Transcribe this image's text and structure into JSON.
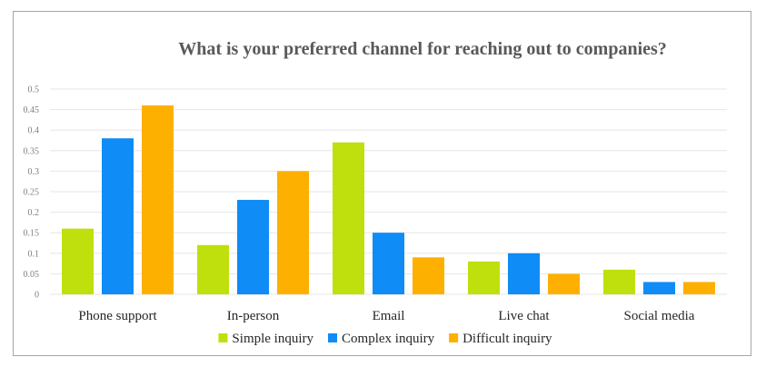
{
  "chart_data": {
    "type": "bar",
    "title": "What is your preferred channel for reaching out to companies?",
    "categories": [
      "Phone support",
      "In-person",
      "Email",
      "Live chat",
      "Social media"
    ],
    "series": [
      {
        "name": "Simple inquiry",
        "color": "#bfe00c",
        "values": [
          0.16,
          0.12,
          0.37,
          0.08,
          0.06
        ]
      },
      {
        "name": "Complex inquiry",
        "color": "#0f8cf5",
        "values": [
          0.38,
          0.23,
          0.15,
          0.1,
          0.03
        ]
      },
      {
        "name": "Difficult inquiry",
        "color": "#fdb000",
        "values": [
          0.46,
          0.3,
          0.09,
          0.05,
          0.03
        ]
      }
    ],
    "yticks": [
      "0",
      "0.05",
      "0.1",
      "0.15",
      "0.2",
      "0.25",
      "0.3",
      "0.35",
      "0.4",
      "0.45",
      "0.5"
    ],
    "ylim": [
      0,
      0.5
    ],
    "grid": true,
    "legend_position": "bottom"
  }
}
